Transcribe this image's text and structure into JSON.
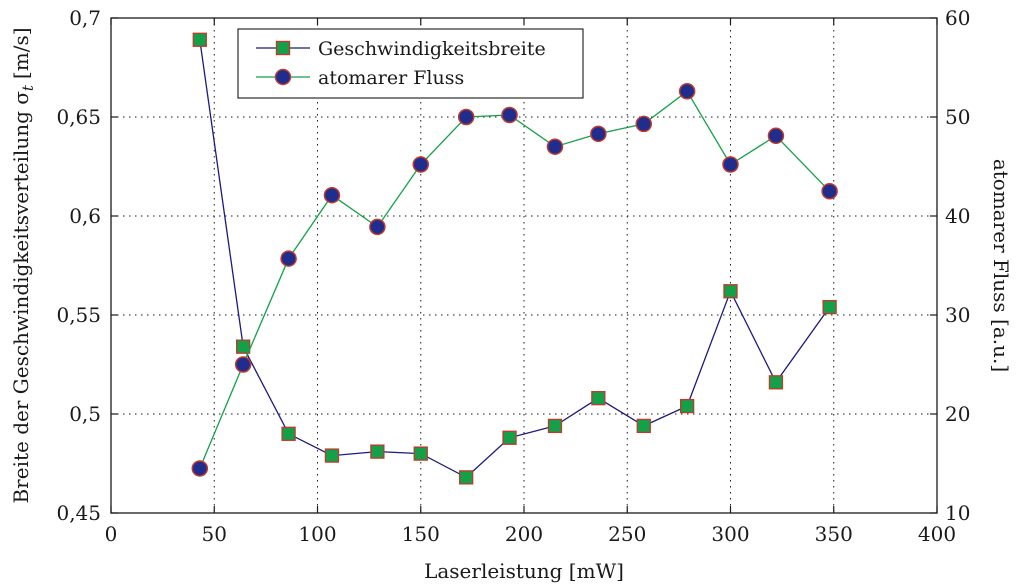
{
  "chart_data": {
    "type": "line",
    "xlabel": "Laserleistung [mW]",
    "ylabel_left": "Breite der Geschwindigkeitsverteilung σ",
    "ylabel_left_subscript": "t",
    "ylabel_left_unit": "[m/s]",
    "ylabel_right": "atomarer Fluss [a.u.]",
    "xlim": [
      0,
      400
    ],
    "ylim_left": [
      0.45,
      0.7
    ],
    "ylim_right": [
      10,
      60
    ],
    "x_ticks": [
      "0",
      "50",
      "100",
      "150",
      "200",
      "250",
      "300",
      "350",
      "400"
    ],
    "y_left_ticks": [
      "0,45",
      "0,5",
      "0,55",
      "0,6",
      "0,65",
      "0,7"
    ],
    "y_right_ticks": [
      "10",
      "20",
      "30",
      "40",
      "50",
      "60"
    ],
    "grid": true,
    "legend_position": "top-left",
    "series": [
      {
        "name": "Geschwindigkeitsbreite",
        "axis": "left",
        "marker": "square",
        "line_color": "#1a1a80",
        "marker_fill": "#14a049",
        "marker_edge": "#c0392b",
        "x": [
          43,
          64,
          86,
          107,
          129,
          150,
          172,
          193,
          215,
          236,
          258,
          279,
          300,
          322,
          348
        ],
        "y": [
          0.689,
          0.534,
          0.49,
          0.479,
          0.481,
          0.48,
          0.468,
          0.488,
          0.494,
          0.508,
          0.494,
          0.504,
          0.562,
          0.516,
          0.554
        ]
      },
      {
        "name": "atomarer Fluss",
        "axis": "right",
        "marker": "circle",
        "line_color": "#14a049",
        "marker_fill": "#1f2d8f",
        "marker_edge": "#c0392b",
        "x": [
          43,
          64,
          86,
          107,
          129,
          150,
          172,
          193,
          215,
          236,
          258,
          279,
          300,
          322,
          348
        ],
        "y": [
          14.5,
          25.0,
          35.7,
          42.1,
          38.9,
          45.2,
          50.0,
          50.2,
          47.0,
          48.3,
          49.3,
          52.6,
          45.2,
          48.1,
          42.5
        ]
      }
    ]
  }
}
